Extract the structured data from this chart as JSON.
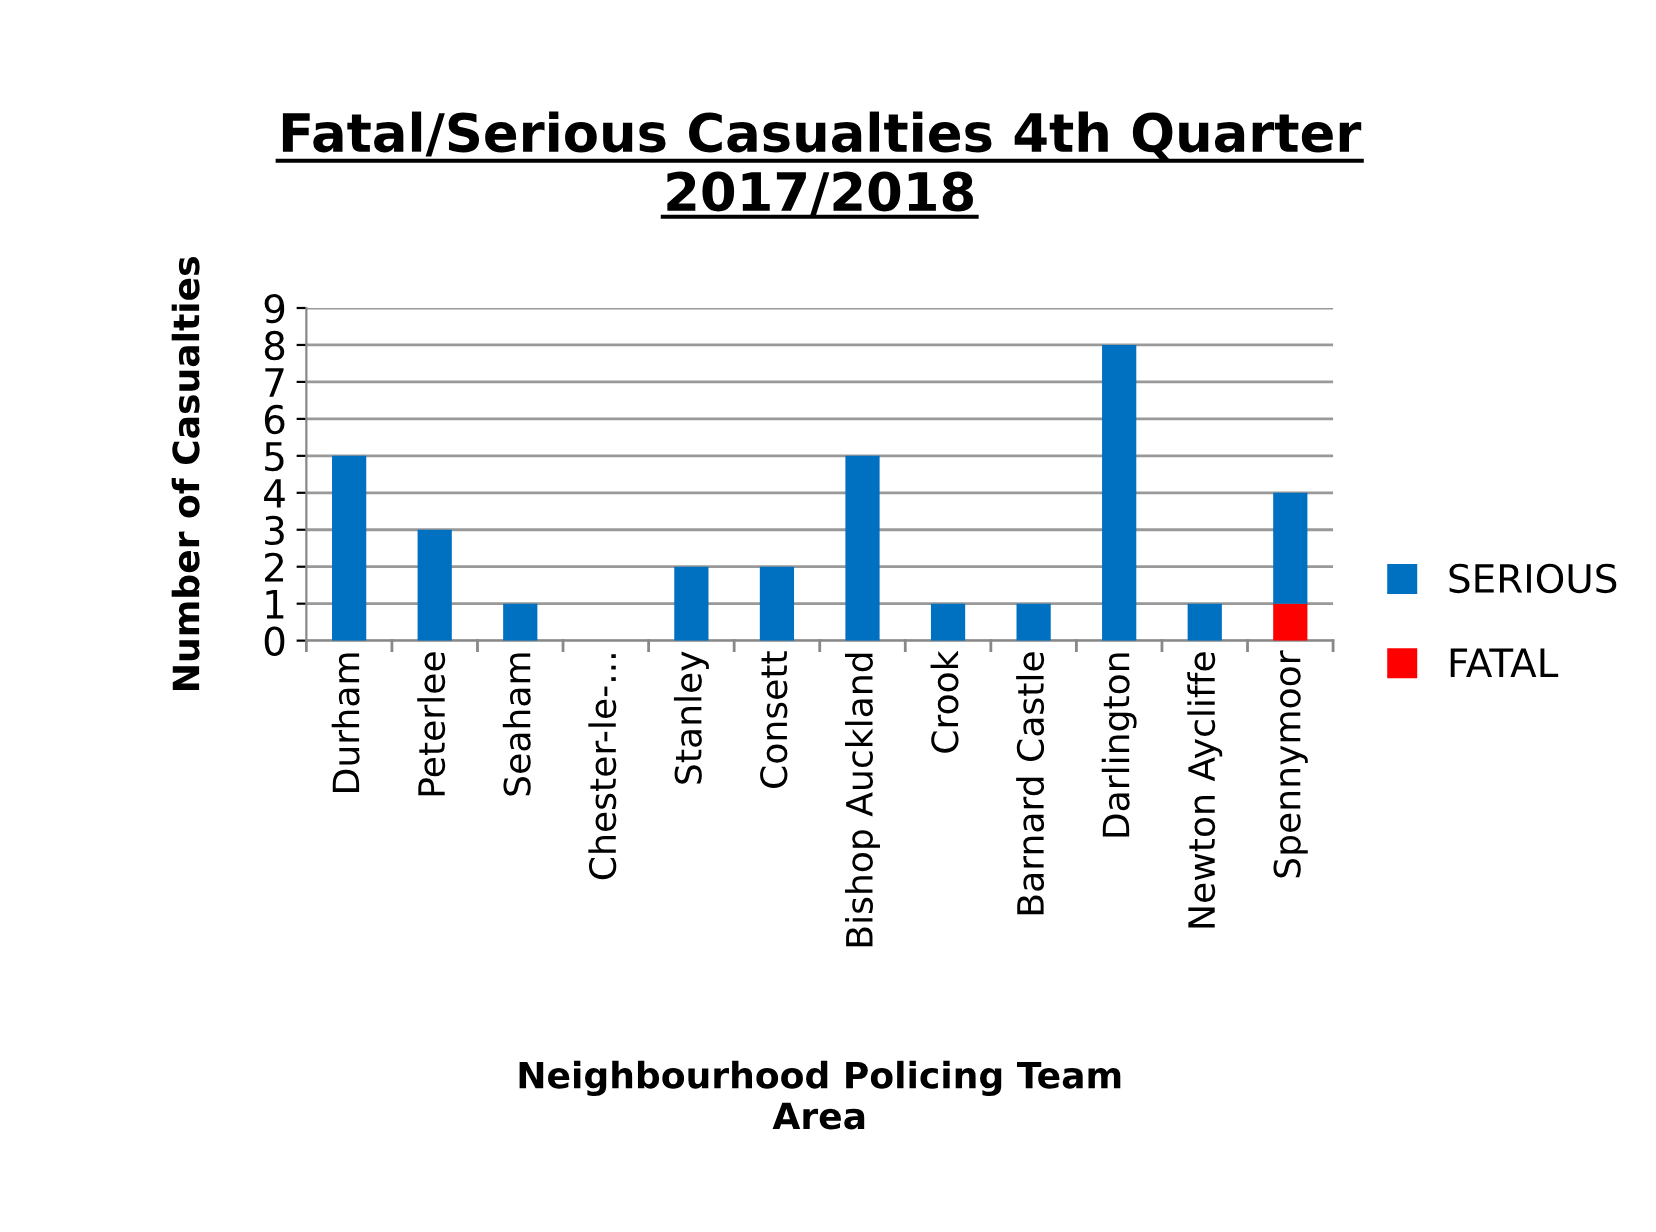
{
  "chart_data": {
    "type": "bar",
    "title": "Fatal/Serious Casualties 4th Quarter\n2017/2018",
    "xlabel": "Neighbourhood Policing Team\nArea",
    "ylabel": "Number of Casualties",
    "categories": [
      "Durham",
      "Peterlee",
      "Seaham",
      "Chester-le-...",
      "Stanley",
      "Consett",
      "Bishop Auckland",
      "Crook",
      "Barnard Castle",
      "Darlington",
      "Newton Aycliffe",
      "Spennymoor"
    ],
    "stacked": true,
    "series": [
      {
        "name": "FATAL",
        "color": "#ff0000",
        "values": [
          0,
          0,
          0,
          0,
          0,
          0,
          0,
          0,
          0,
          0,
          0,
          1
        ]
      },
      {
        "name": "SERIOUS",
        "color": "#0070c0",
        "values": [
          5,
          3,
          1,
          0,
          2,
          2,
          5,
          1,
          1,
          8,
          1,
          3
        ]
      }
    ],
    "ylim": [
      0,
      9
    ],
    "yticks": [
      0,
      1,
      2,
      3,
      4,
      5,
      6,
      7,
      8,
      9
    ],
    "grid": "y",
    "legend": "right"
  }
}
